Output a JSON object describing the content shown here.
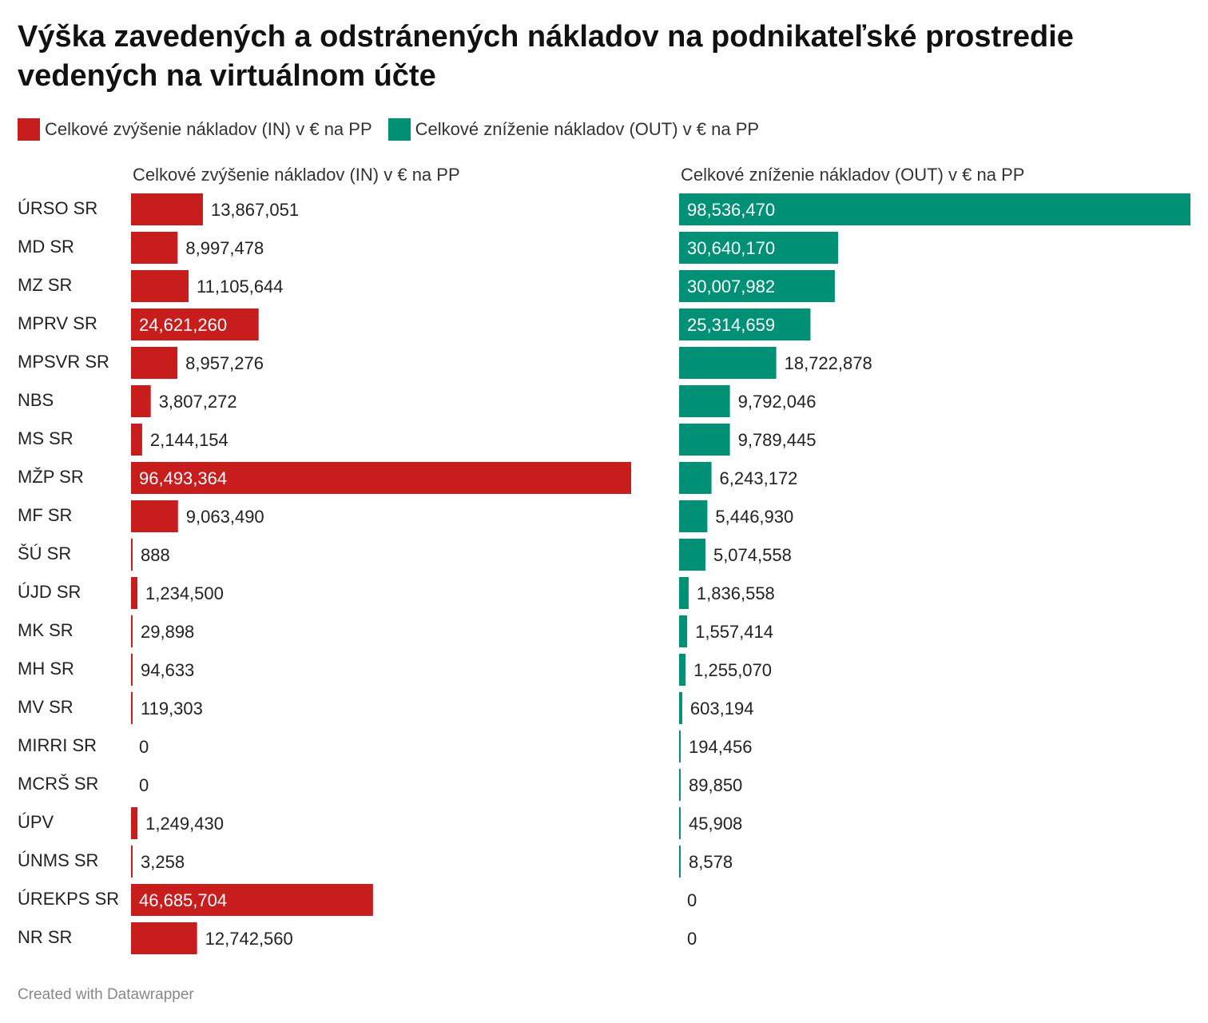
{
  "title": "Výška zavedených a odstránených nákladov na podnikateľské prostredie vedených na virtuálnom účte",
  "footer": "Created with Datawrapper",
  "chart_data": {
    "type": "bar",
    "orientation": "horizontal",
    "categories": [
      "ÚRSO SR",
      "MD SR",
      "MZ SR",
      "MPRV SR",
      "MPSVR SR",
      "NBS",
      "MS SR",
      "MŽP SR",
      "MF SR",
      "ŠÚ SR",
      "ÚJD SR",
      "MK SR",
      "MH SR",
      "MV SR",
      "MIRRI SR",
      "MCRŠ SR",
      "ÚPV",
      "ÚNMS SR",
      "ÚREKPS SR",
      "NR SR"
    ],
    "series": [
      {
        "name": "Celkové zvýšenie nákladov (IN) v € na PP",
        "color": "#c71e1d",
        "values": [
          13867051,
          8997478,
          11105644,
          24621260,
          8957276,
          3807272,
          2144154,
          96493364,
          9063490,
          888,
          1234500,
          29898,
          94633,
          119303,
          0,
          0,
          1249430,
          3258,
          46685704,
          12742560
        ],
        "labels": [
          "13,867,051",
          "8,997,478",
          "11,105,644",
          "24,621,260",
          "8,957,276",
          "3,807,272",
          "2,144,154",
          "96,493,364",
          "9,063,490",
          "888",
          "1,234,500",
          "29,898",
          "94,633",
          "119,303",
          "0",
          "0",
          "1,249,430",
          "3,258",
          "46,685,704",
          "12,742,560"
        ]
      },
      {
        "name": "Celkové zníženie nákladov (OUT) v € na PP",
        "color": "#009076",
        "values": [
          98536470,
          30640170,
          30007982,
          25314659,
          18722878,
          9792046,
          9789445,
          6243172,
          5446930,
          5074558,
          1836558,
          1557414,
          1255070,
          603194,
          194456,
          89850,
          45908,
          8578,
          0,
          0
        ],
        "labels": [
          "98,536,470",
          "30,640,170",
          "30,007,982",
          "25,314,659",
          "18,722,878",
          "9,792,046",
          "9,789,445",
          "6,243,172",
          "5,446,930",
          "5,074,558",
          "1,836,558",
          "1,557,414",
          "1,255,070",
          "603,194",
          "194,456",
          "89,850",
          "45,908",
          "8,578",
          "0",
          "0"
        ]
      }
    ]
  }
}
